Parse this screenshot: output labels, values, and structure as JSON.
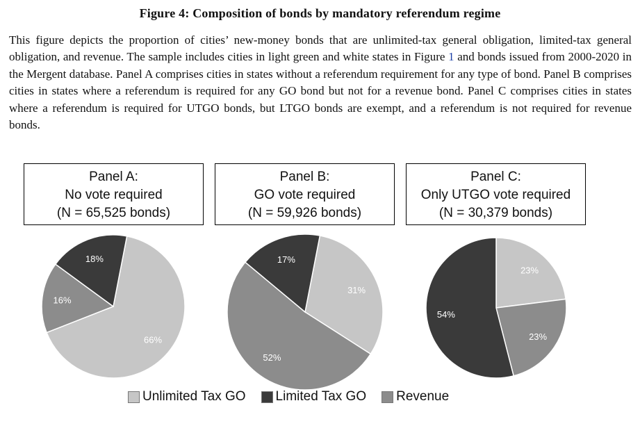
{
  "figure": {
    "title": "Figure 4: Composition of bonds by mandatory referendum regime",
    "caption_part1": "This figure depicts the proportion of cities’ new-money bonds that are unlimited-tax general obligation, limited-tax general obligation, and revenue. The sample includes cities in light green and white states in Figure ",
    "caption_link": "1",
    "caption_part2": " and bonds issued from 2000-2020 in the Mergent database. Panel A comprises cities in states without a referendum requirement for any type of bond. Panel B comprises cities in states where a referendum is required for any GO bond but not for a revenue bond. Panel C comprises cities in states where a referendum is required for UTGO bonds, but LTGO bonds are exempt, and a referendum is not required for revenue bonds."
  },
  "colors": {
    "unlimited": "#c6c6c6",
    "limited": "#3a3a3a",
    "revenue": "#8c8c8c"
  },
  "chart_data": [
    {
      "type": "pie",
      "panel": "Panel A:",
      "subtitle": "No vote required",
      "n_label": "(N = 65,525 bonds)",
      "slices": [
        {
          "name": "Unlimited Tax GO",
          "value": 66,
          "label": "66%"
        },
        {
          "name": "Revenue",
          "value": 16,
          "label": "16%"
        },
        {
          "name": "Limited Tax GO",
          "value": 18,
          "label": "18%"
        }
      ]
    },
    {
      "type": "pie",
      "panel": "Panel B:",
      "subtitle": "GO vote required",
      "n_label": "(N = 59,926 bonds)",
      "slices": [
        {
          "name": "Unlimited Tax GO",
          "value": 31,
          "label": "31%"
        },
        {
          "name": "Revenue",
          "value": 52,
          "label": "52%"
        },
        {
          "name": "Limited Tax GO",
          "value": 17,
          "label": "17%"
        }
      ]
    },
    {
      "type": "pie",
      "panel": "Panel C:",
      "subtitle": "Only UTGO vote required",
      "n_label": "(N = 30,379 bonds)",
      "slices": [
        {
          "name": "Unlimited Tax GO",
          "value": 23,
          "label": "23%"
        },
        {
          "name": "Revenue",
          "value": 23,
          "label": "23%"
        },
        {
          "name": "Limited Tax GO",
          "value": 54,
          "label": "54%"
        }
      ]
    }
  ],
  "legend": [
    {
      "label": "Unlimited Tax GO",
      "color": "#c6c6c6"
    },
    {
      "label": "Limited Tax GO",
      "color": "#3a3a3a"
    },
    {
      "label": "Revenue",
      "color": "#8c8c8c"
    }
  ]
}
